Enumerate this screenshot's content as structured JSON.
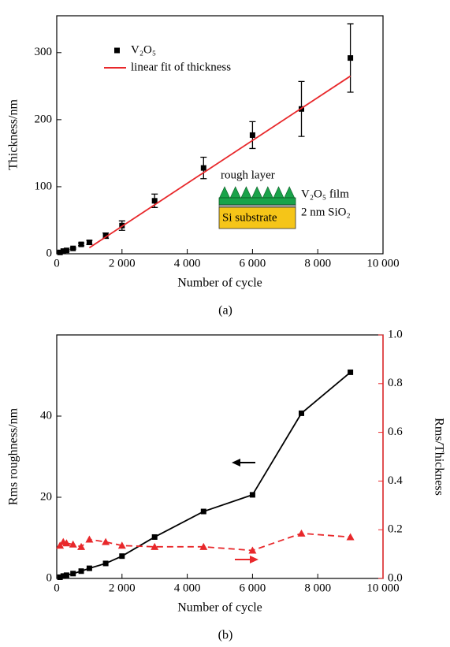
{
  "chart_data": [
    {
      "type": "scatter",
      "xlabel": "Number of cycle",
      "ylabel": "Thickness/nm",
      "caption": "(a)",
      "xlim": [
        0,
        10000
      ],
      "ylim": [
        0,
        355
      ],
      "xticks": [
        0,
        {
          "value": 2000,
          "label": "2 000"
        },
        {
          "value": 4000,
          "label": "4 000"
        },
        {
          "value": 6000,
          "label": "6 000"
        },
        {
          "value": 8000,
          "label": "8 000"
        },
        {
          "value": 10000,
          "label": "10 000"
        }
      ],
      "yticks": [
        0,
        100,
        200,
        300
      ],
      "legend": "upper left",
      "series": [
        {
          "name": "V₂O₅",
          "type": "scatter",
          "marker": "square",
          "color": "#000000",
          "x": [
            100,
            200,
            300,
            500,
            750,
            1000,
            1500,
            2000,
            3000,
            4500,
            6000,
            7500,
            9000
          ],
          "values": [
            2,
            4,
            5,
            8,
            14,
            17,
            27,
            42,
            79,
            128,
            177,
            216,
            292
          ],
          "errors": [
            1,
            1,
            1,
            1,
            2,
            3,
            4,
            7,
            10,
            16,
            20,
            41,
            51
          ]
        },
        {
          "name": "linear fit of thickness",
          "type": "line",
          "color": "#e8282b",
          "x": [
            1000,
            9000
          ],
          "values": [
            9,
            265
          ]
        }
      ],
      "annotations": [
        "rough layer",
        "V₂O₅ film",
        "Si substrate",
        "2 nm SiO₂"
      ]
    },
    {
      "type": "line",
      "xlabel": "Number of cycle",
      "ylabel": "Rms roughness/nm",
      "y2label": "Rms/Thickness",
      "caption": "(b)",
      "xlim": [
        0,
        10000
      ],
      "ylim": [
        0,
        60
      ],
      "y2lim": [
        0,
        1
      ],
      "xticks": [
        0,
        {
          "value": 2000,
          "label": "2 000"
        },
        {
          "value": 4000,
          "label": "4 000"
        },
        {
          "value": 6000,
          "label": "6 000"
        },
        {
          "value": 8000,
          "label": "8 000"
        },
        {
          "value": 10000,
          "label": "10 000"
        }
      ],
      "yticks": [
        0,
        20,
        40
      ],
      "y2ticks": [
        {
          "value": 0,
          "label": "0.0"
        },
        0.2,
        0.4,
        0.6,
        0.8,
        {
          "value": 1,
          "label": "1.0"
        }
      ],
      "series": [
        {
          "type": "line",
          "marker": "square",
          "color": "#000000",
          "x": [
            100,
            200,
            300,
            500,
            750,
            1000,
            1500,
            2000,
            3000,
            4500,
            6000,
            7500,
            9000
          ],
          "values": [
            0.3,
            0.6,
            0.8,
            1.2,
            1.8,
            2.5,
            3.7,
            5.5,
            10.2,
            16.5,
            20.6,
            40.7,
            50.8
          ]
        },
        {
          "type": "line",
          "marker": "triangle",
          "dashed": true,
          "axis": "y2",
          "color": "#e8282b",
          "x": [
            100,
            200,
            300,
            500,
            750,
            1000,
            1500,
            2000,
            3000,
            4500,
            6000,
            7500,
            9000
          ],
          "values": [
            0.135,
            0.15,
            0.145,
            0.14,
            0.13,
            0.16,
            0.15,
            0.135,
            0.13,
            0.13,
            0.115,
            0.185,
            0.17
          ]
        }
      ]
    }
  ]
}
